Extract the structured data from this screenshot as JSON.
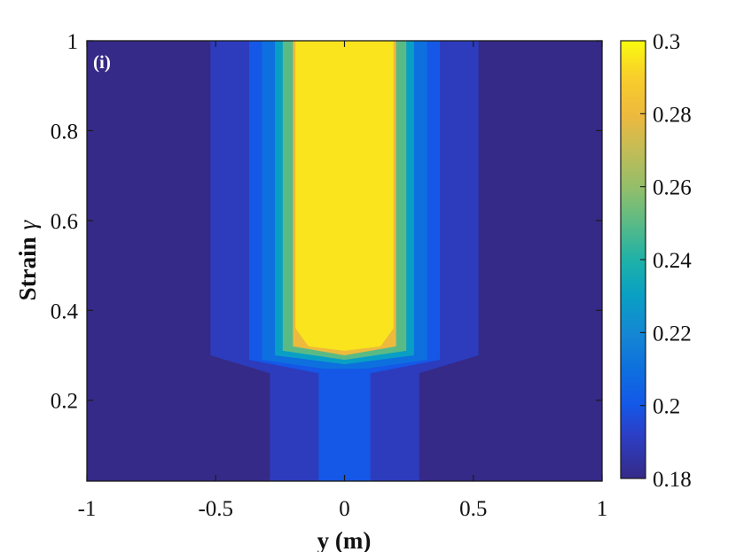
{
  "chart_data": {
    "type": "heatmap",
    "panel_label": "(i)",
    "xlabel": "y (m)",
    "ylabel_main": "Strain",
    "ylabel_symbol": "γ",
    "xlim": [
      -1,
      1
    ],
    "ylim": [
      0.02,
      1
    ],
    "x_ticks": [
      -1,
      -0.5,
      0,
      0.5,
      1
    ],
    "x_tick_labels": [
      "-1",
      "-0.5",
      "0",
      "0.5",
      "1"
    ],
    "y_ticks": [
      0.2,
      0.4,
      0.6,
      0.8,
      1
    ],
    "y_tick_labels": [
      "0.2",
      "0.4",
      "0.6",
      "0.8",
      "1"
    ],
    "colorbar": {
      "range": [
        0.18,
        0.3
      ],
      "ticks": [
        0.18,
        0.2,
        0.22,
        0.24,
        0.26,
        0.28,
        0.3
      ],
      "tick_labels": [
        "0.18",
        "0.2",
        "0.22",
        "0.24",
        "0.26",
        "0.28",
        "0.3"
      ],
      "colormap": "parula"
    },
    "background_value": 0.18,
    "regions": [
      {
        "value": 0.19,
        "polygon": [
          [
            -0.29,
            0.02
          ],
          [
            -0.29,
            0.26
          ],
          [
            -0.52,
            0.3
          ],
          [
            -0.52,
            1.0
          ],
          [
            0.52,
            1.0
          ],
          [
            0.52,
            0.3
          ],
          [
            0.29,
            0.26
          ],
          [
            0.29,
            0.02
          ]
        ]
      },
      {
        "value": 0.2,
        "polygon": [
          [
            -0.1,
            0.02
          ],
          [
            -0.1,
            0.26
          ],
          [
            -0.37,
            0.29
          ],
          [
            -0.37,
            1.0
          ],
          [
            0.37,
            1.0
          ],
          [
            0.37,
            0.29
          ],
          [
            0.1,
            0.26
          ],
          [
            0.1,
            0.02
          ]
        ]
      },
      {
        "value": 0.21,
        "polygon": [
          [
            -0.32,
            0.29
          ],
          [
            -0.32,
            1.0
          ],
          [
            0.32,
            1.0
          ],
          [
            0.32,
            0.29
          ],
          [
            0.08,
            0.27
          ],
          [
            -0.08,
            0.27
          ]
        ]
      },
      {
        "value": 0.23,
        "polygon": [
          [
            -0.27,
            0.3
          ],
          [
            -0.27,
            1.0
          ],
          [
            0.27,
            1.0
          ],
          [
            0.27,
            0.3
          ],
          [
            0.0,
            0.28
          ]
        ]
      },
      {
        "value": 0.25,
        "polygon": [
          [
            -0.24,
            0.31
          ],
          [
            -0.24,
            1.0
          ],
          [
            0.24,
            1.0
          ],
          [
            0.24,
            0.31
          ],
          [
            0.0,
            0.29
          ]
        ]
      },
      {
        "value": 0.28,
        "polygon": [
          [
            -0.2,
            0.32
          ],
          [
            -0.2,
            1.0
          ],
          [
            0.2,
            1.0
          ],
          [
            0.2,
            0.32
          ],
          [
            0.0,
            0.3
          ]
        ]
      },
      {
        "value": 0.295,
        "polygon": [
          [
            -0.19,
            0.36
          ],
          [
            -0.19,
            1.0
          ],
          [
            0.19,
            1.0
          ],
          [
            0.19,
            0.36
          ],
          [
            0.14,
            0.32
          ],
          [
            0.0,
            0.31
          ],
          [
            -0.14,
            0.32
          ]
        ]
      }
    ]
  }
}
